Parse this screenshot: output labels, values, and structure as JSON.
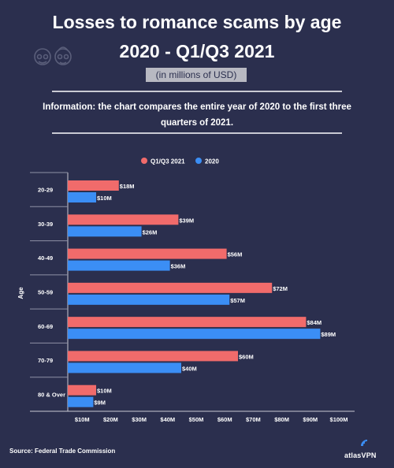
{
  "header": {
    "title_line1": "Losses to romance scams by age",
    "title_line2": "2020 - Q1/Q3 2021",
    "subtitle": "(in millions of USD)",
    "info": "Information: the chart compares the entire year of 2020 to the first three quarters of 2021."
  },
  "footer": {
    "source": "Source: Federal Trade Commission",
    "brand": "atlasVPN"
  },
  "colors": {
    "background": "#2b2f4e",
    "q1q3_2021": "#f16b6b",
    "y2020": "#3b8ef5"
  },
  "chart_data": {
    "type": "bar",
    "orientation": "horizontal",
    "ylabel": "Age",
    "categories": [
      "20-29",
      "30-39",
      "40-49",
      "50-59",
      "60-69",
      "70-79",
      "80 & Over"
    ],
    "series": [
      {
        "name": "Q1/Q3 2021",
        "values": [
          18,
          39,
          56,
          72,
          84,
          60,
          10
        ],
        "labels": [
          "$18M",
          "$39M",
          "$56M",
          "$72M",
          "$84M",
          "$60M",
          "$10M"
        ]
      },
      {
        "name": "2020",
        "values": [
          10,
          26,
          36,
          57,
          89,
          40,
          9
        ],
        "labels": [
          "$10M",
          "$26M",
          "$36M",
          "$57M",
          "$89M",
          "$40M",
          "$9M"
        ]
      }
    ],
    "xticks": [
      "$10M",
      "$20M",
      "$30M",
      "$40M",
      "$50M",
      "$60M",
      "$70M",
      "$80M",
      "$90M",
      "$100M"
    ],
    "xlim": [
      0,
      100
    ],
    "legend": "top-center"
  }
}
